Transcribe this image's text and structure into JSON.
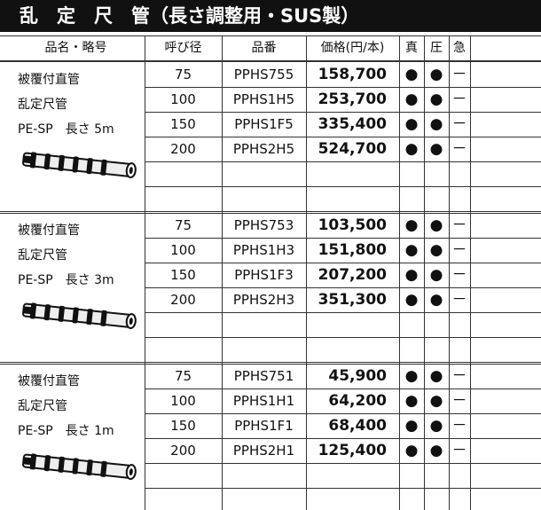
{
  "header": {
    "title": "乱　定　尺　管（長さ調整用・SUS製）"
  },
  "table": {
    "columns": [
      "品名・略号",
      "呼び径",
      "品番",
      "価格(円/本)",
      "真",
      "圧",
      "急"
    ],
    "groups": [
      {
        "name_lines": [
          "被覆付直管",
          "乱定尺管",
          "PE-SP　長さ 5m"
        ],
        "rows": [
          [
            "75",
            "PPHS755",
            "158,700",
            "●",
            "●",
            "－"
          ],
          [
            "100",
            "PPHS1H5",
            "253,700",
            "●",
            "●",
            "－"
          ],
          [
            "150",
            "PPHS1F5",
            "335,400",
            "●",
            "●",
            "－"
          ],
          [
            "200",
            "PPHS2H5",
            "524,700",
            "●",
            "●",
            "－"
          ]
        ]
      },
      {
        "name_lines": [
          "被覆付直管",
          "乱定尺管",
          "PE-SP　長さ 3m"
        ],
        "rows": [
          [
            "75",
            "PPHS753",
            "103,500",
            "●",
            "●",
            "－"
          ],
          [
            "100",
            "PPHS1H3",
            "151,800",
            "●",
            "●",
            "－"
          ],
          [
            "150",
            "PPHS1F3",
            "207,200",
            "●",
            "●",
            "－"
          ],
          [
            "200",
            "PPHS2H3",
            "351,300",
            "●",
            "●",
            "－"
          ]
        ]
      },
      {
        "name_lines": [
          "被覆付直管",
          "乱定尺管",
          "PE-SP　長さ 1m"
        ],
        "rows": [
          [
            "75",
            "PPHS751",
            "45,900",
            "●",
            "●",
            "－"
          ],
          [
            "100",
            "PPHS1H1",
            "64,200",
            "●",
            "●",
            "－"
          ],
          [
            "150",
            "PPHS1F1",
            "68,400",
            "●",
            "●",
            "－"
          ],
          [
            "200",
            "PPHS2H1",
            "125,400",
            "●",
            "●",
            "－"
          ]
        ]
      }
    ]
  }
}
